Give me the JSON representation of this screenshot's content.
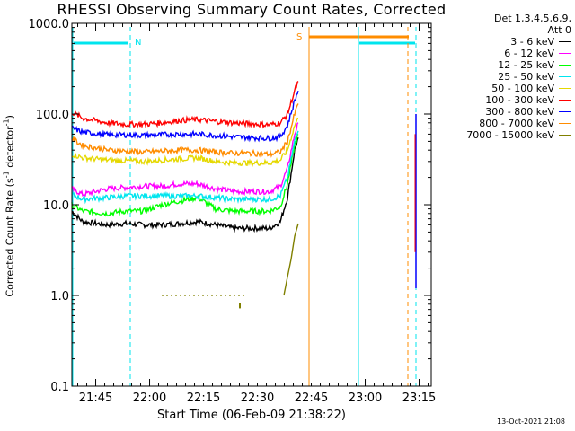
{
  "chart_data": {
    "type": "line",
    "title": "RHESSI Observing Summary Count Rates, Corrected",
    "xlabel": "Start Time (06-Feb-09 21:38:22)",
    "ylabel": "Corrected Count Rate (s",
    "ylabel_sup1": "-1",
    "ylabel_mid": " detector",
    "ylabel_sup2": "-1",
    "ylabel_end": ")",
    "yscale": "log",
    "ylim": [
      0.1,
      1000
    ],
    "ytick_labels": [
      "1000.0",
      "100.0",
      "10.0",
      "1.0",
      "0.1"
    ],
    "xlim_minutes": [
      0,
      100
    ],
    "xtick_labels": [
      "21:45",
      "22:00",
      "22:15",
      "22:30",
      "22:45",
      "23:00",
      "23:15"
    ],
    "xtick_minutes": [
      6.63,
      21.63,
      36.63,
      51.63,
      66.63,
      81.63,
      96.63
    ],
    "legend_header": [
      "Det 1,3,4,5,6,9,",
      "Att 0"
    ],
    "legend_placement": "right",
    "series": [
      {
        "name": "3 - 6 keV",
        "color": "#000000",
        "points": [
          [
            0,
            8.5
          ],
          [
            3,
            6.5
          ],
          [
            10,
            6.0
          ],
          [
            15,
            6.2
          ],
          [
            20,
            6.0
          ],
          [
            25,
            6.0
          ],
          [
            30,
            6.2
          ],
          [
            35,
            6.5
          ],
          [
            40,
            6.0
          ],
          [
            45,
            5.5
          ],
          [
            50,
            5.5
          ],
          [
            55,
            5.5
          ],
          [
            58,
            6.5
          ],
          [
            60,
            12
          ],
          [
            62,
            40
          ],
          [
            63,
            55
          ]
        ]
      },
      {
        "name": "6 - 12 keV",
        "color": "#ff00ff",
        "points": [
          [
            0,
            15
          ],
          [
            3,
            13
          ],
          [
            10,
            15
          ],
          [
            15,
            15.5
          ],
          [
            20,
            16
          ],
          [
            25,
            16
          ],
          [
            30,
            17
          ],
          [
            35,
            17
          ],
          [
            40,
            15
          ],
          [
            45,
            14
          ],
          [
            50,
            14
          ],
          [
            55,
            14
          ],
          [
            58,
            16
          ],
          [
            60,
            25
          ],
          [
            62,
            60
          ],
          [
            63,
            80
          ]
        ]
      },
      {
        "name": "12 - 25 keV",
        "color": "#00ff00",
        "points": [
          [
            0,
            10
          ],
          [
            3,
            8.5
          ],
          [
            10,
            8.0
          ],
          [
            15,
            8.5
          ],
          [
            20,
            8.5
          ],
          [
            25,
            10
          ],
          [
            30,
            11
          ],
          [
            35,
            12
          ],
          [
            40,
            9
          ],
          [
            45,
            8.5
          ],
          [
            50,
            8.5
          ],
          [
            55,
            8.5
          ],
          [
            58,
            9.5
          ],
          [
            60,
            17
          ],
          [
            62,
            45
          ],
          [
            63,
            60
          ]
        ]
      },
      {
        "name": "25 - 50 keV",
        "color": "#00e5ee",
        "points": [
          [
            0,
            13
          ],
          [
            3,
            11.5
          ],
          [
            10,
            12
          ],
          [
            15,
            12.5
          ],
          [
            20,
            12.5
          ],
          [
            25,
            12.5
          ],
          [
            30,
            12.5
          ],
          [
            35,
            12.5
          ],
          [
            40,
            12
          ],
          [
            45,
            11.5
          ],
          [
            50,
            11.5
          ],
          [
            55,
            11.5
          ],
          [
            58,
            12.5
          ],
          [
            60,
            20
          ],
          [
            62,
            50
          ],
          [
            63,
            65
          ]
        ]
      },
      {
        "name": "50 - 100 keV",
        "color": "#e5d800",
        "points": [
          [
            0,
            36
          ],
          [
            3,
            33
          ],
          [
            10,
            31
          ],
          [
            15,
            30.5
          ],
          [
            20,
            30
          ],
          [
            25,
            31
          ],
          [
            30,
            32
          ],
          [
            35,
            33
          ],
          [
            40,
            30
          ],
          [
            45,
            29
          ],
          [
            50,
            29
          ],
          [
            55,
            29
          ],
          [
            58,
            31
          ],
          [
            60,
            40
          ],
          [
            62,
            75
          ],
          [
            63,
            90
          ]
        ]
      },
      {
        "name": "100 - 300 keV",
        "color": "#ff0000",
        "points": [
          [
            0,
            105
          ],
          [
            3,
            90
          ],
          [
            10,
            80
          ],
          [
            15,
            77
          ],
          [
            20,
            77
          ],
          [
            25,
            80
          ],
          [
            30,
            85
          ],
          [
            35,
            87
          ],
          [
            40,
            83
          ],
          [
            45,
            80
          ],
          [
            50,
            78
          ],
          [
            55,
            76
          ],
          [
            58,
            80
          ],
          [
            60,
            100
          ],
          [
            62,
            180
          ],
          [
            63,
            230
          ]
        ]
      },
      {
        "name": "300 - 800 keV",
        "color": "#0000ff",
        "points": [
          [
            0,
            70
          ],
          [
            3,
            63
          ],
          [
            10,
            59
          ],
          [
            15,
            59
          ],
          [
            20,
            58
          ],
          [
            25,
            59
          ],
          [
            30,
            60
          ],
          [
            35,
            60
          ],
          [
            40,
            58
          ],
          [
            45,
            56
          ],
          [
            50,
            55
          ],
          [
            55,
            54
          ],
          [
            58,
            56
          ],
          [
            60,
            75
          ],
          [
            62,
            140
          ],
          [
            63,
            180
          ]
        ]
      },
      {
        "name": "800 - 7000 keV",
        "color": "#ff8c00",
        "points": [
          [
            0,
            54
          ],
          [
            3,
            45
          ],
          [
            10,
            40
          ],
          [
            15,
            39
          ],
          [
            20,
            38
          ],
          [
            25,
            39
          ],
          [
            30,
            40
          ],
          [
            35,
            40
          ],
          [
            40,
            38
          ],
          [
            45,
            37
          ],
          [
            50,
            37
          ],
          [
            55,
            36
          ],
          [
            58,
            38
          ],
          [
            60,
            50
          ],
          [
            62,
            100
          ],
          [
            63,
            130
          ]
        ]
      },
      {
        "name": "7000 - 15000 keV",
        "color": "#808000",
        "points": [
          [
            59,
            1.0
          ],
          [
            60,
            1.6
          ],
          [
            61,
            2.5
          ],
          [
            62,
            4.5
          ],
          [
            63,
            6.2
          ]
        ]
      }
    ],
    "annotations": [
      {
        "text": "N",
        "color": "#00e5ee"
      },
      {
        "text": "S",
        "color": "#ff8c00"
      }
    ],
    "timestamp": "13-Oct-2021 21:08"
  }
}
